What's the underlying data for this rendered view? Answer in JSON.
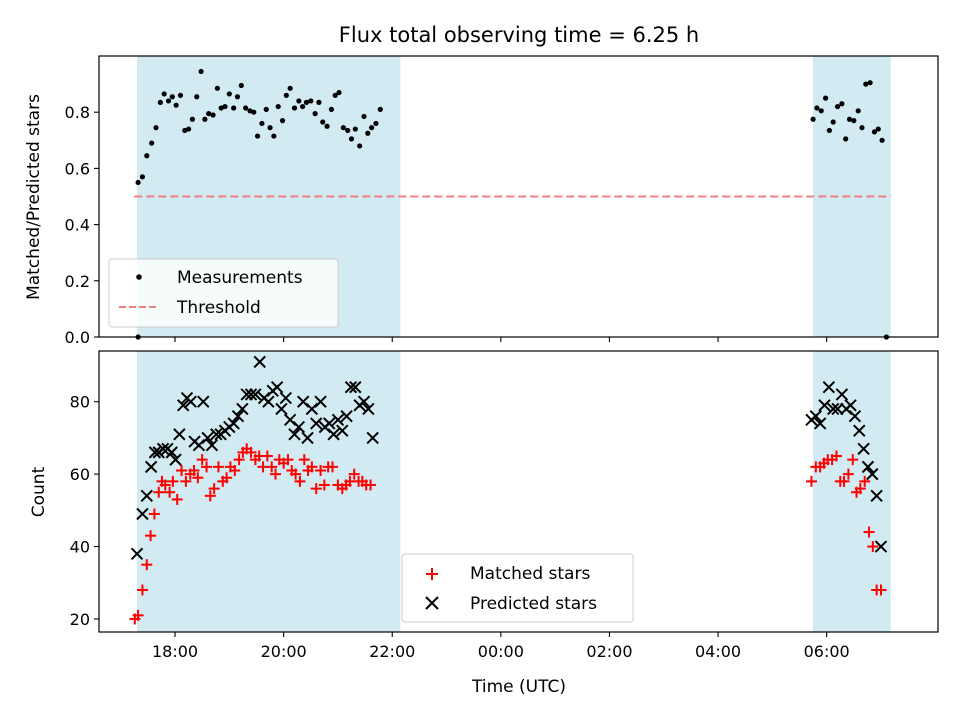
{
  "chart_data": {
    "type": "scatter",
    "title": "Flux total observing time = 6.25 h",
    "xlabel": "Time (UTC)",
    "x_unit": "hours since 00:00 UTC of the first night",
    "x_ticks": [
      {
        "value": 18,
        "label": "18:00"
      },
      {
        "value": 20,
        "label": "20:00"
      },
      {
        "value": 22,
        "label": "22:00"
      },
      {
        "value": 24,
        "label": "00:00"
      },
      {
        "value": 26,
        "label": "02:00"
      },
      {
        "value": 28,
        "label": "04:00"
      },
      {
        "value": 30,
        "label": "06:00"
      }
    ],
    "xlim": [
      16.6,
      32.05
    ],
    "shaded_intervals": [
      [
        17.3,
        22.15
      ],
      [
        29.75,
        31.18
      ]
    ],
    "shade_color": "#add8e6",
    "panels": [
      {
        "ylabel": "Matched/Predicted stars",
        "ylim": [
          0,
          1.0
        ],
        "yticks": [
          "0.0",
          "0.2",
          "0.4",
          "0.6",
          "0.8"
        ],
        "legend_position": "lower-left",
        "series": [
          {
            "name": "Measurements",
            "marker": "dot",
            "color": "#000000",
            "points": [
              [
                17.32,
                0.0
              ],
              [
                17.32,
                0.55
              ],
              [
                17.4,
                0.57
              ],
              [
                17.48,
                0.645
              ],
              [
                17.57,
                0.69
              ],
              [
                17.65,
                0.745
              ],
              [
                17.73,
                0.835
              ],
              [
                17.8,
                0.865
              ],
              [
                17.88,
                0.84
              ],
              [
                17.95,
                0.855
              ],
              [
                18.02,
                0.825
              ],
              [
                18.1,
                0.86
              ],
              [
                18.18,
                0.735
              ],
              [
                18.25,
                0.74
              ],
              [
                18.32,
                0.775
              ],
              [
                18.4,
                0.855
              ],
              [
                18.48,
                0.945
              ],
              [
                18.55,
                0.775
              ],
              [
                18.62,
                0.795
              ],
              [
                18.7,
                0.79
              ],
              [
                18.78,
                0.885
              ],
              [
                18.85,
                0.815
              ],
              [
                18.92,
                0.82
              ],
              [
                19.0,
                0.865
              ],
              [
                19.08,
                0.815
              ],
              [
                19.15,
                0.855
              ],
              [
                19.22,
                0.895
              ],
              [
                19.3,
                0.815
              ],
              [
                19.38,
                0.805
              ],
              [
                19.45,
                0.8
              ],
              [
                19.52,
                0.715
              ],
              [
                19.6,
                0.76
              ],
              [
                19.68,
                0.81
              ],
              [
                19.75,
                0.745
              ],
              [
                19.82,
                0.715
              ],
              [
                19.9,
                0.82
              ],
              [
                19.98,
                0.77
              ],
              [
                20.05,
                0.86
              ],
              [
                20.12,
                0.885
              ],
              [
                20.2,
                0.815
              ],
              [
                20.28,
                0.84
              ],
              [
                20.35,
                0.82
              ],
              [
                20.42,
                0.835
              ],
              [
                20.5,
                0.84
              ],
              [
                20.58,
                0.795
              ],
              [
                20.65,
                0.835
              ],
              [
                20.72,
                0.765
              ],
              [
                20.8,
                0.75
              ],
              [
                20.88,
                0.81
              ],
              [
                20.95,
                0.86
              ],
              [
                21.02,
                0.87
              ],
              [
                21.1,
                0.745
              ],
              [
                21.18,
                0.735
              ],
              [
                21.25,
                0.705
              ],
              [
                21.32,
                0.74
              ],
              [
                21.4,
                0.68
              ],
              [
                21.48,
                0.785
              ],
              [
                21.55,
                0.725
              ],
              [
                21.62,
                0.745
              ],
              [
                21.7,
                0.76
              ],
              [
                21.78,
                0.81
              ],
              [
                29.75,
                0.775
              ],
              [
                29.82,
                0.815
              ],
              [
                29.9,
                0.805
              ],
              [
                29.98,
                0.85
              ],
              [
                30.05,
                0.735
              ],
              [
                30.12,
                0.765
              ],
              [
                30.2,
                0.82
              ],
              [
                30.28,
                0.83
              ],
              [
                30.35,
                0.705
              ],
              [
                30.42,
                0.775
              ],
              [
                30.5,
                0.77
              ],
              [
                30.58,
                0.805
              ],
              [
                30.65,
                0.745
              ],
              [
                30.72,
                0.9
              ],
              [
                30.8,
                0.905
              ],
              [
                30.88,
                0.73
              ],
              [
                30.95,
                0.74
              ],
              [
                31.02,
                0.7
              ],
              [
                31.1,
                0.0
              ]
            ]
          },
          {
            "name": "Threshold",
            "marker": "dashed-line",
            "color": "#f08080",
            "line": [
              [
                17.25,
                0.5
              ],
              [
                31.18,
                0.5
              ]
            ]
          }
        ]
      },
      {
        "ylabel": "Count",
        "ylim": [
          16.4,
          94
        ],
        "yticks": [
          "20",
          "40",
          "60",
          "80"
        ],
        "legend_position": "lower-center",
        "series": [
          {
            "name": "Matched stars",
            "marker": "plus",
            "color": "#ff0000",
            "points": [
              [
                17.26,
                20
              ],
              [
                17.32,
                21
              ],
              [
                17.4,
                28
              ],
              [
                17.48,
                35
              ],
              [
                17.55,
                43
              ],
              [
                17.62,
                49
              ],
              [
                17.7,
                55
              ],
              [
                17.76,
                58
              ],
              [
                17.82,
                57
              ],
              [
                17.9,
                55
              ],
              [
                17.96,
                58
              ],
              [
                18.04,
                53
              ],
              [
                18.12,
                61
              ],
              [
                18.2,
                58
              ],
              [
                18.28,
                60
              ],
              [
                18.35,
                61
              ],
              [
                18.42,
                59
              ],
              [
                18.5,
                64
              ],
              [
                18.58,
                62
              ],
              [
                18.65,
                54
              ],
              [
                18.72,
                56
              ],
              [
                18.8,
                62
              ],
              [
                18.88,
                58
              ],
              [
                18.95,
                59
              ],
              [
                19.02,
                62
              ],
              [
                19.1,
                61
              ],
              [
                19.18,
                64
              ],
              [
                19.25,
                66
              ],
              [
                19.32,
                67
              ],
              [
                19.4,
                66
              ],
              [
                19.48,
                64
              ],
              [
                19.55,
                65
              ],
              [
                19.62,
                62
              ],
              [
                19.7,
                65
              ],
              [
                19.78,
                62
              ],
              [
                19.85,
                60
              ],
              [
                19.92,
                64
              ],
              [
                20.0,
                63
              ],
              [
                20.08,
                64
              ],
              [
                20.15,
                61
              ],
              [
                20.22,
                60
              ],
              [
                20.3,
                58
              ],
              [
                20.38,
                64
              ],
              [
                20.45,
                61
              ],
              [
                20.52,
                62
              ],
              [
                20.6,
                56
              ],
              [
                20.68,
                61
              ],
              [
                20.75,
                57
              ],
              [
                20.82,
                62
              ],
              [
                20.9,
                62
              ],
              [
                21.0,
                57
              ],
              [
                21.08,
                56
              ],
              [
                21.15,
                57
              ],
              [
                21.22,
                58
              ],
              [
                21.3,
                60
              ],
              [
                21.38,
                58
              ],
              [
                21.45,
                58
              ],
              [
                21.52,
                57
              ],
              [
                21.6,
                57
              ],
              [
                29.72,
                58
              ],
              [
                29.8,
                62
              ],
              [
                29.88,
                62
              ],
              [
                29.95,
                63
              ],
              [
                30.02,
                64
              ],
              [
                30.1,
                64
              ],
              [
                30.18,
                65
              ],
              [
                30.25,
                58
              ],
              [
                30.32,
                58
              ],
              [
                30.4,
                60
              ],
              [
                30.48,
                64
              ],
              [
                30.55,
                55
              ],
              [
                30.62,
                56
              ],
              [
                30.7,
                58
              ],
              [
                30.78,
                44
              ],
              [
                30.85,
                40
              ],
              [
                30.92,
                28
              ],
              [
                31.0,
                28
              ]
            ]
          },
          {
            "name": "Predicted stars",
            "marker": "x",
            "color": "#000000",
            "points": [
              [
                17.3,
                38
              ],
              [
                17.4,
                49
              ],
              [
                17.48,
                54
              ],
              [
                17.56,
                62
              ],
              [
                17.63,
                66
              ],
              [
                17.7,
                66
              ],
              [
                17.78,
                67
              ],
              [
                17.86,
                67
              ],
              [
                17.94,
                66
              ],
              [
                18.01,
                64
              ],
              [
                18.08,
                71
              ],
              [
                18.15,
                79
              ],
              [
                18.22,
                81
              ],
              [
                18.29,
                80
              ],
              [
                18.36,
                69
              ],
              [
                18.44,
                68
              ],
              [
                18.52,
                80
              ],
              [
                18.6,
                70
              ],
              [
                18.68,
                68
              ],
              [
                18.76,
                71
              ],
              [
                18.84,
                71
              ],
              [
                18.92,
                72
              ],
              [
                19.0,
                73
              ],
              [
                19.08,
                74
              ],
              [
                19.16,
                76
              ],
              [
                19.24,
                78
              ],
              [
                19.32,
                82
              ],
              [
                19.4,
                82
              ],
              [
                19.48,
                82
              ],
              [
                19.56,
                91
              ],
              [
                19.64,
                81
              ],
              [
                19.72,
                80
              ],
              [
                19.8,
                83
              ],
              [
                19.88,
                84
              ],
              [
                19.96,
                78
              ],
              [
                20.04,
                81
              ],
              [
                20.12,
                75
              ],
              [
                20.2,
                71
              ],
              [
                20.28,
                73
              ],
              [
                20.36,
                80
              ],
              [
                20.44,
                70
              ],
              [
                20.52,
                78
              ],
              [
                20.6,
                74
              ],
              [
                20.68,
                80
              ],
              [
                20.76,
                73
              ],
              [
                20.84,
                74
              ],
              [
                20.92,
                71
              ],
              [
                21.0,
                75
              ],
              [
                21.08,
                72
              ],
              [
                21.16,
                76
              ],
              [
                21.24,
                84
              ],
              [
                21.32,
                84
              ],
              [
                21.4,
                79
              ],
              [
                21.48,
                80
              ],
              [
                21.56,
                78
              ],
              [
                21.64,
                70
              ],
              [
                29.72,
                75
              ],
              [
                29.8,
                76
              ],
              [
                29.88,
                74
              ],
              [
                29.96,
                79
              ],
              [
                30.04,
                84
              ],
              [
                30.12,
                78
              ],
              [
                30.2,
                78
              ],
              [
                30.28,
                82
              ],
              [
                30.36,
                78
              ],
              [
                30.44,
                79
              ],
              [
                30.52,
                76
              ],
              [
                30.6,
                72
              ],
              [
                30.68,
                67
              ],
              [
                30.76,
                62
              ],
              [
                30.84,
                60
              ],
              [
                30.92,
                54
              ],
              [
                31.0,
                40
              ]
            ]
          }
        ]
      }
    ]
  }
}
